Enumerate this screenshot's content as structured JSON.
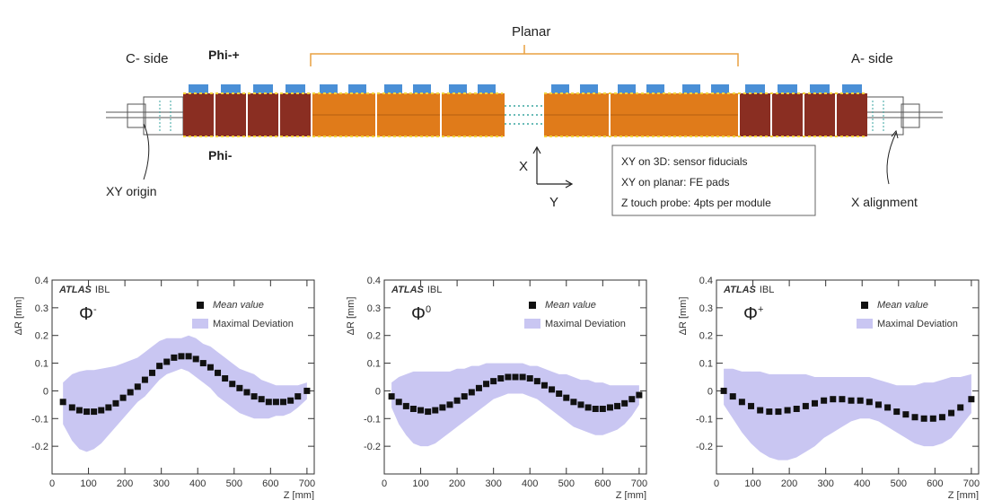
{
  "diagram": {
    "planar_label": "Planar",
    "c_side_label": "C- side",
    "a_side_label": "A- side",
    "phi_plus_label": "Phi-+",
    "phi_minus_label": "Phi-",
    "xy_origin_label": "XY origin",
    "x_alignment_label": "X alignment",
    "axis_x_label": "X",
    "axis_y_label": "Y",
    "legend_lines": [
      "XY on 3D: sensor fiducials",
      "XY on planar: FE pads",
      "Z touch probe: 4pts per module"
    ],
    "colors": {
      "module_3d": "#8a2e22",
      "module_planar": "#e07b1a",
      "fe_pad": "#4a8fd6",
      "bracket": "#e8a040"
    }
  },
  "chart_data": [
    {
      "type": "scatter",
      "panel_label": "Φ",
      "panel_sup": "-",
      "atlas_bold": "ATLAS",
      "atlas_suffix": "IBL",
      "ylabel": "ΔR [mm]",
      "xlabel": "Z [mm]",
      "xlim": [
        0,
        720
      ],
      "ylim": [
        -0.3,
        0.4
      ],
      "xticks": [
        0,
        100,
        200,
        300,
        400,
        500,
        600,
        700
      ],
      "yticks": [
        -0.2,
        -0.1,
        0,
        0.1,
        0.2,
        0.3,
        0.4
      ],
      "legend": {
        "mean": "Mean value",
        "band": "Maximal Deviation"
      },
      "colors": {
        "band": "#c9c6f2",
        "points": "#111111"
      },
      "x": [
        30,
        55,
        75,
        95,
        115,
        135,
        155,
        175,
        195,
        215,
        235,
        255,
        275,
        295,
        315,
        335,
        355,
        375,
        395,
        415,
        435,
        455,
        475,
        495,
        515,
        535,
        555,
        575,
        595,
        615,
        635,
        655,
        675,
        700
      ],
      "y": [
        -0.04,
        -0.06,
        -0.07,
        -0.075,
        -0.075,
        -0.07,
        -0.06,
        -0.045,
        -0.025,
        -0.005,
        0.015,
        0.04,
        0.065,
        0.09,
        0.105,
        0.12,
        0.125,
        0.125,
        0.115,
        0.1,
        0.085,
        0.065,
        0.045,
        0.025,
        0.01,
        -0.005,
        -0.02,
        -0.03,
        -0.04,
        -0.04,
        -0.04,
        -0.035,
        -0.02,
        0.0
      ],
      "band_low": [
        -0.12,
        -0.18,
        -0.21,
        -0.22,
        -0.21,
        -0.19,
        -0.16,
        -0.13,
        -0.1,
        -0.07,
        -0.04,
        -0.02,
        0.01,
        0.04,
        0.06,
        0.07,
        0.08,
        0.07,
        0.05,
        0.03,
        0.01,
        -0.02,
        -0.04,
        -0.06,
        -0.08,
        -0.09,
        -0.1,
        -0.1,
        -0.1,
        -0.09,
        -0.09,
        -0.08,
        -0.06,
        -0.03
      ],
      "band_high": [
        0.03,
        0.06,
        0.07,
        0.075,
        0.075,
        0.08,
        0.085,
        0.09,
        0.1,
        0.11,
        0.12,
        0.14,
        0.16,
        0.18,
        0.19,
        0.19,
        0.19,
        0.2,
        0.19,
        0.17,
        0.16,
        0.14,
        0.12,
        0.1,
        0.08,
        0.07,
        0.06,
        0.04,
        0.03,
        0.02,
        0.02,
        0.02,
        0.02,
        0.03
      ]
    },
    {
      "type": "scatter",
      "panel_label": "Φ",
      "panel_sup": "0",
      "atlas_bold": "ATLAS",
      "atlas_suffix": "IBL",
      "ylabel": "ΔR [mm]",
      "xlabel": "Z [mm]",
      "xlim": [
        0,
        720
      ],
      "ylim": [
        -0.3,
        0.4
      ],
      "xticks": [
        0,
        100,
        200,
        300,
        400,
        500,
        600,
        700
      ],
      "yticks": [
        -0.2,
        -0.1,
        0,
        0.1,
        0.2,
        0.3,
        0.4
      ],
      "legend": {
        "mean": "Mean value",
        "band": "Maximal Deviation"
      },
      "colors": {
        "band": "#c9c6f2",
        "points": "#111111"
      },
      "x": [
        20,
        40,
        60,
        80,
        100,
        120,
        140,
        160,
        180,
        200,
        220,
        240,
        260,
        280,
        300,
        320,
        340,
        360,
        380,
        400,
        420,
        440,
        460,
        480,
        500,
        520,
        540,
        560,
        580,
        600,
        620,
        640,
        660,
        680,
        700
      ],
      "y": [
        -0.02,
        -0.04,
        -0.055,
        -0.065,
        -0.07,
        -0.075,
        -0.07,
        -0.06,
        -0.05,
        -0.035,
        -0.02,
        -0.005,
        0.01,
        0.025,
        0.035,
        0.045,
        0.05,
        0.05,
        0.05,
        0.045,
        0.035,
        0.02,
        0.005,
        -0.01,
        -0.025,
        -0.04,
        -0.05,
        -0.06,
        -0.065,
        -0.065,
        -0.06,
        -0.055,
        -0.045,
        -0.03,
        -0.015
      ],
      "band_low": [
        -0.06,
        -0.12,
        -0.16,
        -0.19,
        -0.2,
        -0.2,
        -0.19,
        -0.17,
        -0.15,
        -0.13,
        -0.11,
        -0.09,
        -0.07,
        -0.05,
        -0.03,
        -0.02,
        -0.01,
        -0.01,
        -0.01,
        -0.02,
        -0.03,
        -0.05,
        -0.07,
        -0.09,
        -0.11,
        -0.13,
        -0.14,
        -0.15,
        -0.16,
        -0.16,
        -0.15,
        -0.14,
        -0.12,
        -0.09,
        -0.05
      ],
      "band_high": [
        0.03,
        0.05,
        0.06,
        0.07,
        0.07,
        0.07,
        0.07,
        0.07,
        0.07,
        0.08,
        0.08,
        0.09,
        0.09,
        0.1,
        0.1,
        0.1,
        0.1,
        0.1,
        0.1,
        0.09,
        0.09,
        0.08,
        0.07,
        0.06,
        0.06,
        0.05,
        0.04,
        0.04,
        0.03,
        0.03,
        0.02,
        0.02,
        0.02,
        0.02,
        0.02
      ]
    },
    {
      "type": "scatter",
      "panel_label": "Φ",
      "panel_sup": "+",
      "atlas_bold": "ATLAS",
      "atlas_suffix": "IBL",
      "ylabel": "ΔR [mm]",
      "xlabel": "Z [mm]",
      "xlim": [
        0,
        720
      ],
      "ylim": [
        -0.3,
        0.4
      ],
      "xticks": [
        0,
        100,
        200,
        300,
        400,
        500,
        600,
        700
      ],
      "yticks": [
        -0.2,
        -0.1,
        0,
        0.1,
        0.2,
        0.3,
        0.4
      ],
      "legend": {
        "mean": "Mean value",
        "band": "Maximal Deviation"
      },
      "colors": {
        "band": "#c9c6f2",
        "points": "#111111"
      },
      "x": [
        20,
        45,
        70,
        95,
        120,
        145,
        170,
        195,
        220,
        245,
        270,
        295,
        320,
        345,
        370,
        395,
        420,
        445,
        470,
        495,
        520,
        545,
        570,
        595,
        620,
        645,
        670,
        700
      ],
      "y": [
        0.0,
        -0.02,
        -0.04,
        -0.055,
        -0.07,
        -0.075,
        -0.075,
        -0.07,
        -0.065,
        -0.055,
        -0.045,
        -0.035,
        -0.03,
        -0.03,
        -0.035,
        -0.035,
        -0.04,
        -0.05,
        -0.06,
        -0.075,
        -0.085,
        -0.095,
        -0.1,
        -0.1,
        -0.095,
        -0.08,
        -0.06,
        -0.03
      ],
      "band_low": [
        -0.05,
        -0.1,
        -0.15,
        -0.19,
        -0.22,
        -0.24,
        -0.25,
        -0.25,
        -0.24,
        -0.22,
        -0.2,
        -0.17,
        -0.15,
        -0.13,
        -0.11,
        -0.1,
        -0.1,
        -0.11,
        -0.13,
        -0.15,
        -0.17,
        -0.19,
        -0.2,
        -0.2,
        -0.19,
        -0.17,
        -0.13,
        -0.08
      ],
      "band_high": [
        0.08,
        0.08,
        0.07,
        0.07,
        0.07,
        0.06,
        0.06,
        0.06,
        0.06,
        0.06,
        0.05,
        0.05,
        0.05,
        0.05,
        0.05,
        0.05,
        0.05,
        0.04,
        0.03,
        0.02,
        0.02,
        0.02,
        0.03,
        0.03,
        0.04,
        0.05,
        0.05,
        0.06
      ]
    }
  ]
}
